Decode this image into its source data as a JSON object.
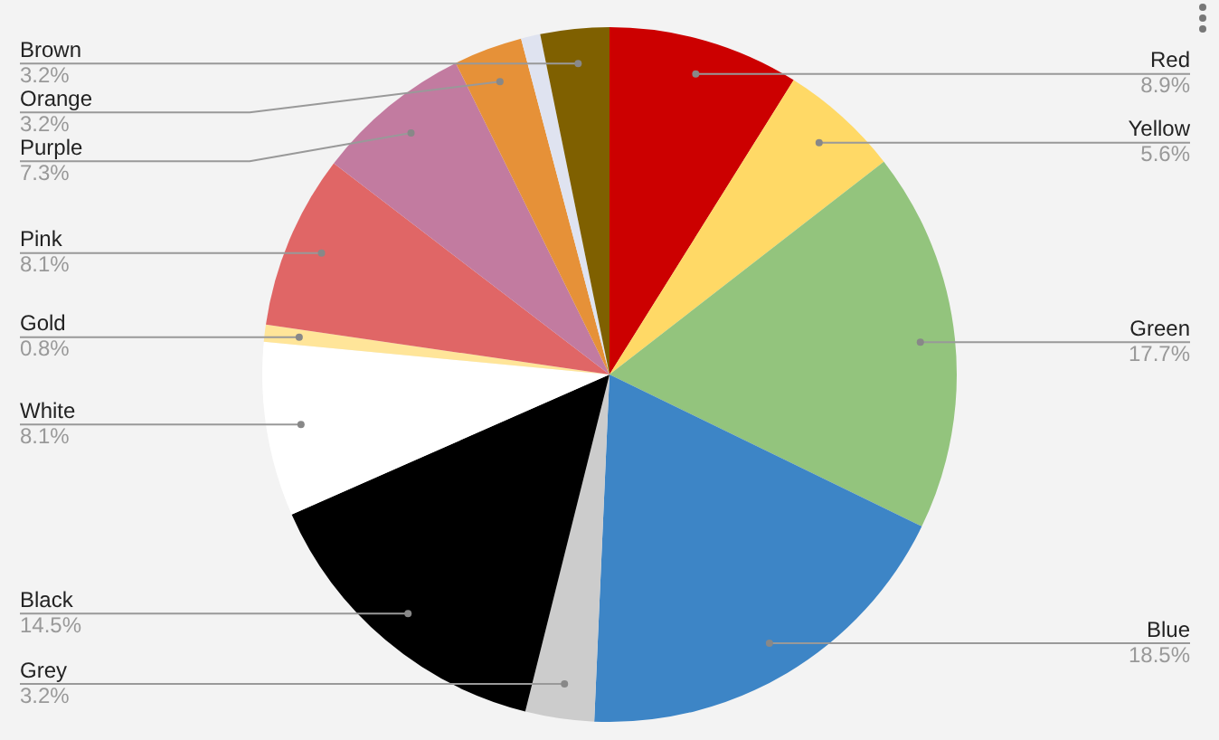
{
  "chart_data": {
    "type": "pie",
    "categories": [
      "Red",
      "Yellow",
      "Green",
      "Blue",
      "Grey",
      "Black",
      "White",
      "Gold",
      "Pink",
      "Purple",
      "Orange",
      null,
      "Brown"
    ],
    "values": [
      8.9,
      5.6,
      17.7,
      18.5,
      3.2,
      14.5,
      8.1,
      0.8,
      8.1,
      7.3,
      3.2,
      0.9,
      3.2
    ],
    "value_labels": [
      "8.9%",
      "5.6%",
      "17.7%",
      "18.5%",
      "3.2%",
      "14.5%",
      "8.1%",
      "0.8%",
      "8.1%",
      "7.3%",
      "3.2%",
      null,
      "3.2%"
    ],
    "colors": [
      "#cc0000",
      "#ffd966",
      "#93c47d",
      "#3d85c6",
      "#cccccc",
      "#000000",
      "#ffffff",
      "#ffe599",
      "#e06666",
      "#c27ba0",
      "#e69138",
      "#dfe3f0",
      "#7f6000"
    ],
    "legend": false
  }
}
